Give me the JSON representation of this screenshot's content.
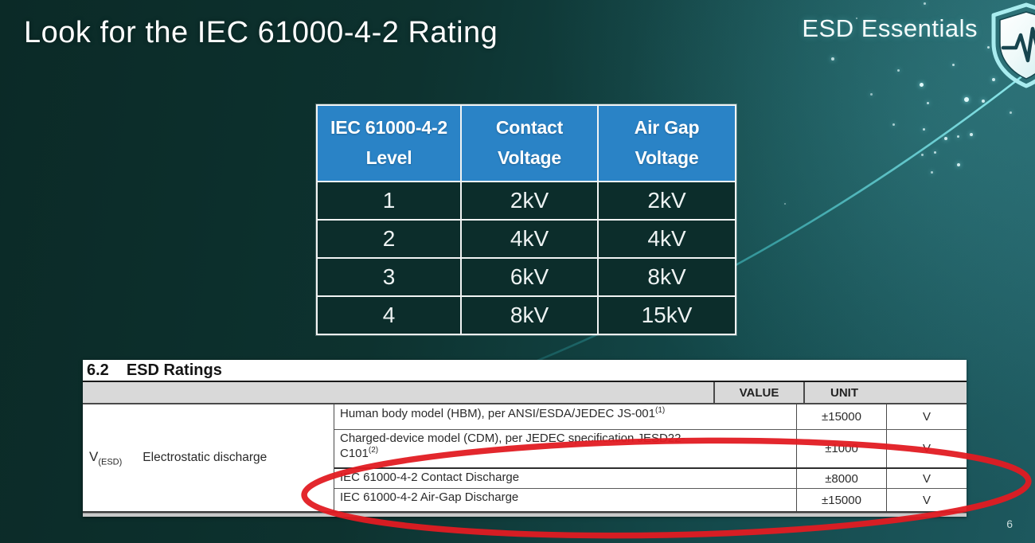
{
  "slide": {
    "title": "Look for the IEC 61000-4-2 Rating",
    "page_number": "6"
  },
  "brand": {
    "label": "ESD Essentials",
    "icon": "shield-ecg-pulse-icon"
  },
  "iec_table": {
    "headers": [
      {
        "line1": "IEC 61000-4-2",
        "line2": "Level"
      },
      {
        "line1": "Contact",
        "line2": "Voltage"
      },
      {
        "line1": "Air Gap",
        "line2": "Voltage"
      }
    ],
    "rows": [
      [
        "1",
        "2kV",
        "2kV"
      ],
      [
        "2",
        "4kV",
        "4kV"
      ],
      [
        "3",
        "6kV",
        "8kV"
      ],
      [
        "4",
        "8kV",
        "15kV"
      ]
    ],
    "header_color": "#2a83c6"
  },
  "datasheet": {
    "section_number": "6.2",
    "section_title": "ESD Ratings",
    "columns": {
      "value": "VALUE",
      "unit": "UNIT"
    },
    "row_group": {
      "symbol": "V",
      "symbol_sub": "(ESD)",
      "label": "Electrostatic discharge"
    },
    "rows": [
      {
        "description": "Human body model (HBM), per ANSI/ESDA/JEDEC JS-001",
        "superscript": "(1)",
        "value": "±15000",
        "unit": "V"
      },
      {
        "description": "Charged-device model (CDM), per JEDEC specification JESD22-",
        "description_line2": "C101",
        "superscript": "(2)",
        "value": "±1000",
        "unit": "V"
      },
      {
        "description": "IEC 61000-4-2 Contact Discharge",
        "value": "±8000",
        "unit": "V"
      },
      {
        "description": "IEC 61000-4-2 Air-Gap Discharge",
        "value": "±15000",
        "unit": "V"
      }
    ],
    "annotation": {
      "shape": "ellipse",
      "color": "#e11b22",
      "highlights": "IEC 61000-4-2 Contact and Air-Gap Discharge rows"
    }
  }
}
